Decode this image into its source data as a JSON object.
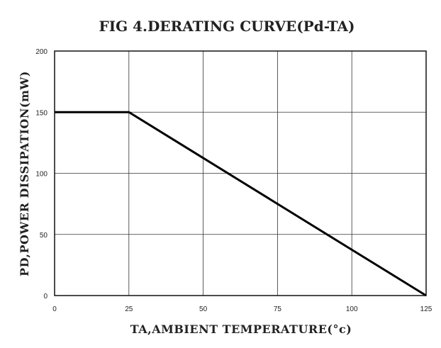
{
  "chart_data": {
    "type": "line",
    "title": "FIG 4.DERATING CURVE(Pd-TA)",
    "xlabel": "TA,AMBIENT TEMPERATURE(°c)",
    "ylabel": "PD,POWER DISSIPATION(mW)",
    "xlim": [
      0,
      125
    ],
    "ylim": [
      0,
      200
    ],
    "x_ticks": [
      0,
      25,
      50,
      75,
      100,
      125
    ],
    "y_ticks": [
      0,
      50,
      100,
      150,
      200
    ],
    "x_tick_labels": [
      "0",
      "25",
      "50",
      "75",
      "100",
      "125"
    ],
    "y_tick_labels": [
      "0",
      "50",
      "100",
      "150",
      "200"
    ],
    "grid": true,
    "series": [
      {
        "x": [
          0,
          25,
          125
        ],
        "y": [
          150,
          150,
          0
        ],
        "color": "#000000"
      }
    ]
  }
}
